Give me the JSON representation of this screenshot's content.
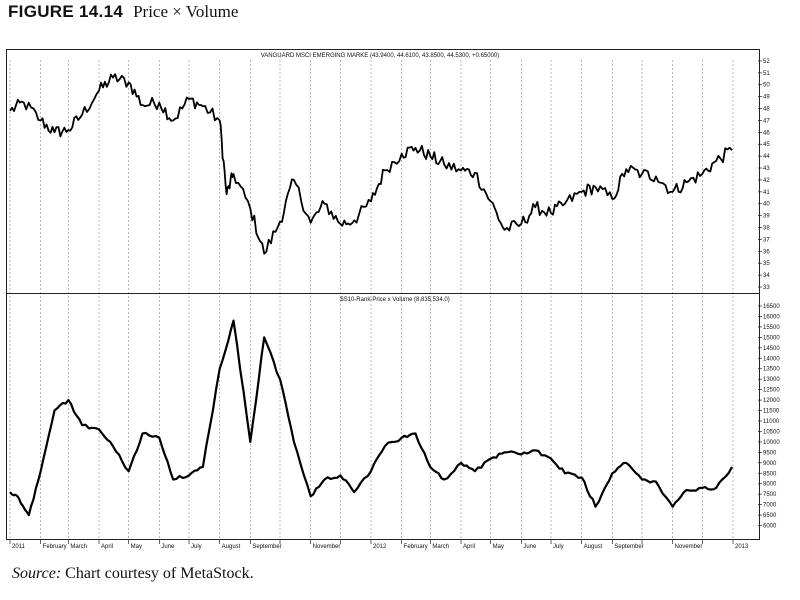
{
  "figure": {
    "number": "FIGURE 14.14",
    "caption": "Price × Volume"
  },
  "source": {
    "label": "Source:",
    "text": "Chart courtesy of MetaStock."
  },
  "x_labels": [
    "2011",
    "February",
    "March",
    "April",
    "May",
    "June",
    "July",
    "August",
    "September",
    "November",
    "2012",
    "February",
    "March",
    "April",
    "May",
    "June",
    "July",
    "August",
    "September",
    "November",
    "2013"
  ],
  "chart_data": [
    {
      "type": "line",
      "title": "VANGUARD MSCI EMERGING MARKE (43.9400, 44.6100, 43.8500, 44.5300, +0.65000)",
      "ylim": [
        33,
        52.5
      ],
      "y_ticks": [
        33,
        34,
        35,
        36,
        37,
        38,
        39,
        40,
        41,
        42,
        43,
        44,
        45,
        46,
        47,
        48,
        49,
        50,
        51,
        52
      ],
      "x": [
        "2011-01-01",
        "2011-01-15",
        "2011-02-01",
        "2011-02-15",
        "2011-03-01",
        "2011-03-15",
        "2011-04-01",
        "2011-04-15",
        "2011-05-01",
        "2011-05-15",
        "2011-06-01",
        "2011-06-15",
        "2011-07-01",
        "2011-07-15",
        "2011-08-01",
        "2011-08-08",
        "2011-08-15",
        "2011-09-01",
        "2011-09-15",
        "2011-10-01",
        "2011-10-15",
        "2011-11-01",
        "2011-11-15",
        "2011-12-01",
        "2011-12-15",
        "2012-01-01",
        "2012-01-15",
        "2012-02-01",
        "2012-02-15",
        "2012-03-01",
        "2012-03-15",
        "2012-04-01",
        "2012-04-15",
        "2012-05-01",
        "2012-05-15",
        "2012-06-01",
        "2012-06-15",
        "2012-07-01",
        "2012-07-15",
        "2012-08-01",
        "2012-08-15",
        "2012-09-01",
        "2012-09-15",
        "2012-10-01",
        "2012-10-15",
        "2012-11-01",
        "2012-11-15",
        "2012-12-01",
        "2012-12-15",
        "2012-12-31"
      ],
      "series": [
        {
          "values": [
            47.8,
            48.5,
            47.0,
            46.0,
            46.2,
            47.5,
            49.5,
            50.6,
            50.2,
            48.3,
            48.5,
            47.0,
            48.8,
            48.2,
            47.0,
            40.8,
            42.5,
            39.6,
            35.8,
            38.5,
            42.0,
            38.4,
            40.0,
            38.3,
            38.6,
            40.2,
            42.8,
            44.2,
            44.7,
            44.0,
            43.3,
            42.8,
            42.6,
            40.2,
            37.8,
            38.3,
            39.7,
            39.2,
            40.0,
            41.0,
            41.4,
            40.4,
            42.9,
            42.5,
            42.3,
            41.0,
            41.8,
            42.5,
            43.6,
            44.5
          ]
        }
      ]
    },
    {
      "type": "line",
      "title": "$S10-Rank-Price x Volume (8,835,534.0)",
      "ylim": [
        5500,
        16500
      ],
      "y_ticks": [
        6000,
        6500,
        7000,
        7500,
        8000,
        8500,
        9000,
        9500,
        10000,
        10500,
        11000,
        11500,
        12000,
        12500,
        13000,
        13500,
        14000,
        14500,
        15000,
        15500,
        16000,
        16500
      ],
      "y_tick_labels": [
        "6000",
        "6500",
        "7000",
        "7500",
        "8000",
        "8500",
        "9000",
        "9500",
        "10000",
        "10500",
        "11000",
        "11500",
        "12000",
        "12500",
        "13000",
        "13500",
        "14000",
        "14500",
        "15000",
        "15500",
        "16000",
        "16500"
      ],
      "x": [
        "2011-01-01",
        "2011-01-10",
        "2011-01-20",
        "2011-02-01",
        "2011-02-15",
        "2011-03-01",
        "2011-03-15",
        "2011-04-01",
        "2011-04-15",
        "2011-05-01",
        "2011-05-15",
        "2011-06-01",
        "2011-06-15",
        "2011-07-01",
        "2011-07-15",
        "2011-08-01",
        "2011-08-15",
        "2011-09-01",
        "2011-09-15",
        "2011-10-01",
        "2011-10-15",
        "2011-11-01",
        "2011-11-15",
        "2011-12-01",
        "2011-12-15",
        "2012-01-01",
        "2012-01-15",
        "2012-02-01",
        "2012-02-15",
        "2012-03-01",
        "2012-03-15",
        "2012-04-01",
        "2012-04-15",
        "2012-05-01",
        "2012-05-15",
        "2012-06-01",
        "2012-06-15",
        "2012-07-01",
        "2012-07-15",
        "2012-08-01",
        "2012-08-15",
        "2012-09-01",
        "2012-09-15",
        "2012-10-01",
        "2012-10-15",
        "2012-11-01",
        "2012-11-15",
        "2012-12-01",
        "2012-12-15",
        "2012-12-31"
      ],
      "series": [
        {
          "values": [
            7600,
            7300,
            6500,
            8600,
            11500,
            12000,
            10800,
            10600,
            9800,
            8600,
            10400,
            10200,
            8200,
            8400,
            8800,
            13500,
            15800,
            10000,
            15000,
            13000,
            10000,
            7400,
            8200,
            8400,
            7600,
            8600,
            9800,
            10200,
            10400,
            8800,
            8200,
            9000,
            8600,
            9200,
            9500,
            9400,
            9600,
            9200,
            8500,
            8300,
            6900,
            8500,
            9000,
            8200,
            8100,
            6900,
            7700,
            7800,
            7800,
            8800
          ]
        }
      ]
    }
  ]
}
